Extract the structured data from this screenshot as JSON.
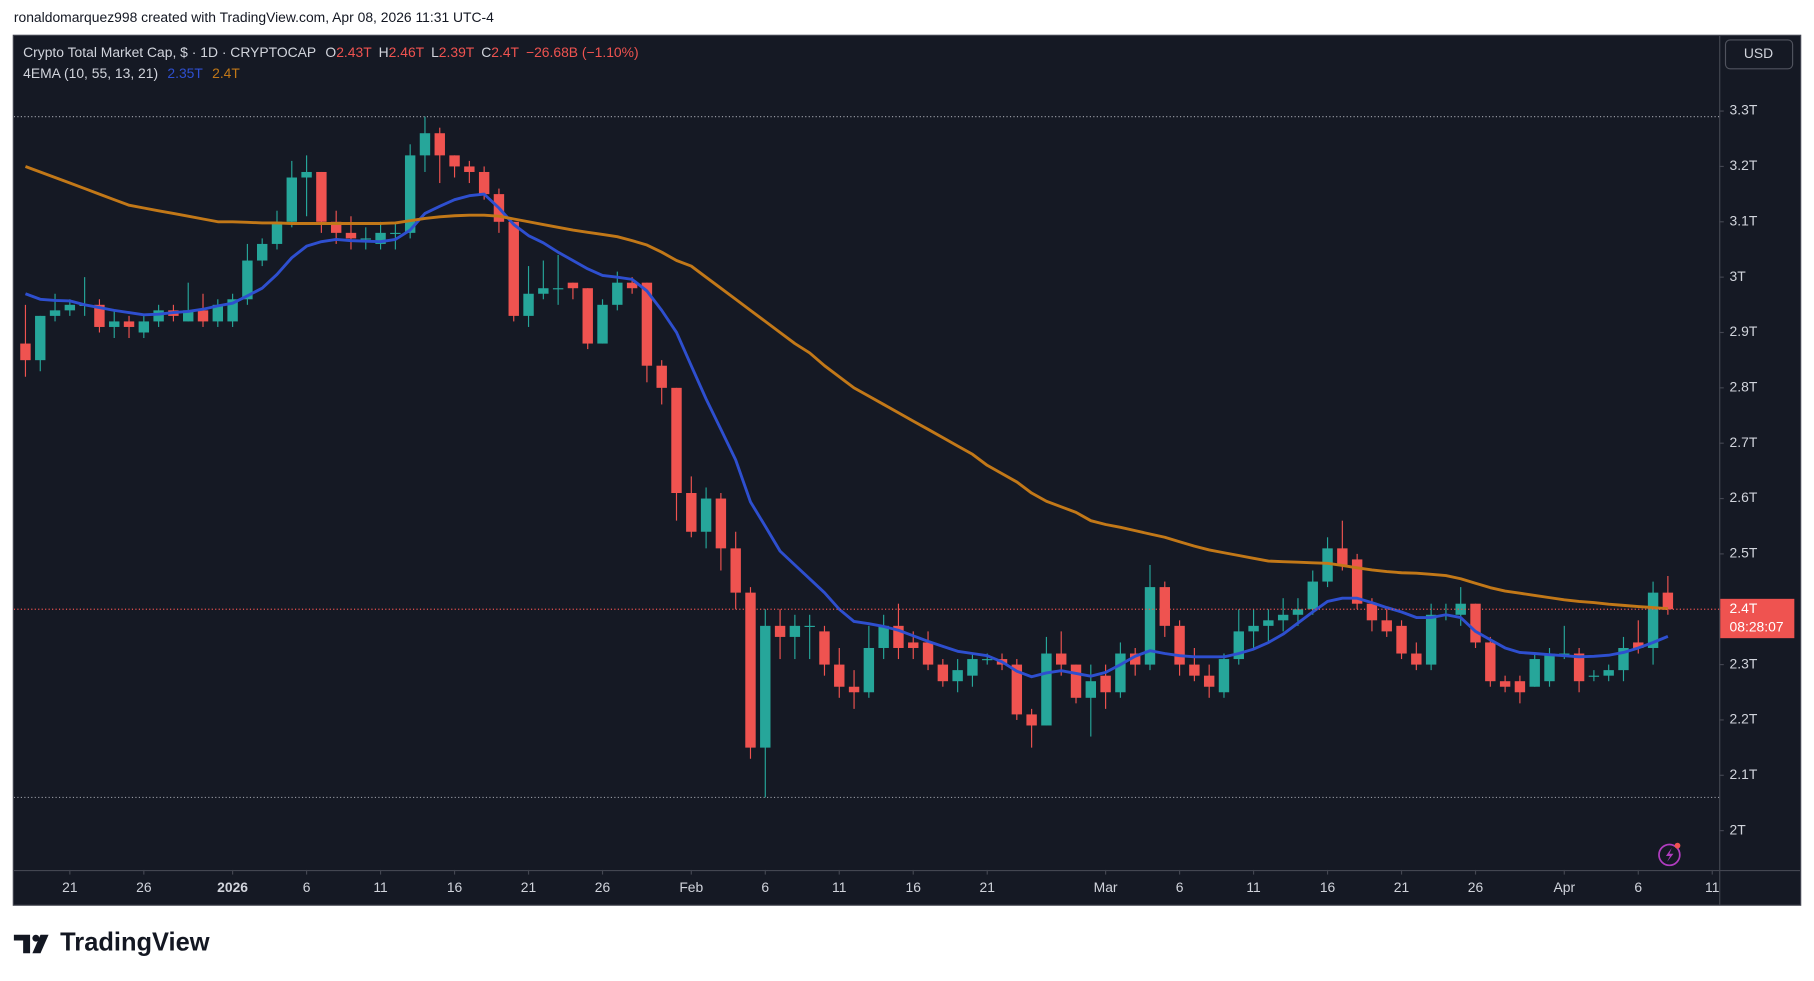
{
  "header": {
    "credit": "ronaldomarquez998 created with TradingView.com, Apr 08, 2026 11:31 UTC-4"
  },
  "footer": {
    "brand": "TradingView"
  },
  "chart_data": {
    "type": "candlestick",
    "title": "Crypto Total Market Cap, $ · 1D · CRYPTOCAP",
    "legend_ohlc": [
      {
        "key": "O",
        "label": "2.43T"
      },
      {
        "key": "H",
        "label": "2.46T"
      },
      {
        "key": "L",
        "label": "2.39T"
      },
      {
        "key": "C",
        "label": "2.4T"
      }
    ],
    "change": "−26.68B (−1.10%)",
    "indicator": {
      "label": "4EMA (10, 55, 13, 21)",
      "value_labels": [
        "2.35T",
        "2.4T"
      ]
    },
    "currency": "USD",
    "up_color": "#26a69a",
    "down_color": "#ef5350",
    "x": [
      "Dec 18",
      "Dec 19",
      "Dec 20",
      "Dec 21",
      "Dec 22",
      "Dec 23",
      "Dec 24",
      "Dec 25",
      "Dec 26",
      "Dec 27",
      "Dec 28",
      "Dec 29",
      "Dec 30",
      "Dec 31",
      "Jan 1",
      "Jan 2",
      "Jan 3",
      "Jan 4",
      "Jan 5",
      "Jan 6",
      "Jan 7",
      "Jan 8",
      "Jan 9",
      "Jan 10",
      "Jan 11",
      "Jan 12",
      "Jan 13",
      "Jan 14",
      "Jan 15",
      "Jan 16",
      "Jan 17",
      "Jan 18",
      "Jan 19",
      "Jan 20",
      "Jan 21",
      "Jan 22",
      "Jan 23",
      "Jan 24",
      "Jan 25",
      "Jan 26",
      "Jan 27",
      "Jan 28",
      "Jan 29",
      "Jan 30",
      "Jan 31",
      "Feb 1",
      "Feb 2",
      "Feb 3",
      "Feb 4",
      "Feb 5",
      "Feb 6",
      "Feb 7",
      "Feb 8",
      "Feb 9",
      "Feb 10",
      "Feb 11",
      "Feb 12",
      "Feb 13",
      "Feb 14",
      "Feb 15",
      "Feb 16",
      "Feb 17",
      "Feb 18",
      "Feb 19",
      "Feb 20",
      "Feb 21",
      "Feb 22",
      "Feb 23",
      "Feb 24",
      "Feb 25",
      "Feb 26",
      "Feb 27",
      "Feb 28",
      "Mar 1",
      "Mar 2",
      "Mar 3",
      "Mar 4",
      "Mar 5",
      "Mar 6",
      "Mar 7",
      "Mar 8",
      "Mar 9",
      "Mar 10",
      "Mar 11",
      "Mar 12",
      "Mar 13",
      "Mar 14",
      "Mar 15",
      "Mar 16",
      "Mar 17",
      "Mar 18",
      "Mar 19",
      "Mar 20",
      "Mar 21",
      "Mar 22",
      "Mar 23",
      "Mar 24",
      "Mar 25",
      "Mar 26",
      "Mar 27",
      "Mar 28",
      "Mar 29",
      "Mar 30",
      "Mar 31",
      "Apr 1",
      "Apr 2",
      "Apr 3",
      "Apr 4",
      "Apr 5",
      "Apr 6",
      "Apr 7",
      "Apr 8"
    ],
    "open": [
      2.88,
      2.85,
      2.93,
      2.94,
      2.95,
      2.95,
      2.91,
      2.92,
      2.9,
      2.92,
      2.94,
      2.92,
      2.94,
      2.92,
      2.92,
      2.96,
      3.03,
      3.06,
      3.1,
      3.18,
      3.19,
      3.1,
      3.08,
      3.07,
      3.06,
      3.08,
      3.08,
      3.22,
      3.26,
      3.22,
      3.2,
      3.19,
      3.15,
      3.1,
      2.93,
      2.97,
      2.98,
      2.99,
      2.98,
      2.88,
      2.95,
      2.99,
      2.99,
      2.84,
      2.8,
      2.61,
      2.54,
      2.6,
      2.51,
      2.43,
      2.15,
      2.37,
      2.35,
      2.37,
      2.36,
      2.3,
      2.26,
      2.25,
      2.33,
      2.37,
      2.34,
      2.34,
      2.3,
      2.27,
      2.28,
      2.31,
      2.31,
      2.3,
      2.21,
      2.19,
      2.32,
      2.3,
      2.24,
      2.28,
      2.25,
      2.32,
      2.3,
      2.44,
      2.37,
      2.3,
      2.28,
      2.25,
      2.31,
      2.36,
      2.37,
      2.38,
      2.39,
      2.4,
      2.45,
      2.51,
      2.49,
      2.41,
      2.38,
      2.37,
      2.32,
      2.3,
      2.39,
      2.39,
      2.41,
      2.34,
      2.27,
      2.27,
      2.26,
      2.27,
      2.32,
      2.32,
      2.28,
      2.28,
      2.29,
      2.34,
      2.33,
      2.43
    ],
    "high": [
      2.95,
      2.93,
      2.97,
      2.96,
      3.0,
      2.96,
      2.94,
      2.93,
      2.93,
      2.95,
      2.95,
      2.99,
      2.97,
      2.96,
      2.97,
      3.06,
      3.07,
      3.12,
      3.21,
      3.22,
      3.19,
      3.12,
      3.11,
      3.09,
      3.1,
      3.1,
      3.24,
      3.29,
      3.27,
      3.22,
      3.21,
      3.2,
      3.16,
      3.1,
      3.02,
      3.03,
      3.04,
      2.99,
      2.98,
      2.96,
      3.01,
      3.0,
      2.99,
      2.85,
      2.8,
      2.64,
      2.62,
      2.61,
      2.54,
      2.44,
      2.4,
      2.4,
      2.39,
      2.39,
      2.37,
      2.33,
      2.29,
      2.37,
      2.39,
      2.41,
      2.36,
      2.36,
      2.31,
      2.31,
      2.32,
      2.32,
      2.32,
      2.31,
      2.22,
      2.35,
      2.36,
      2.3,
      2.3,
      2.3,
      2.34,
      2.33,
      2.48,
      2.45,
      2.38,
      2.33,
      2.3,
      2.32,
      2.4,
      2.4,
      2.4,
      2.42,
      2.42,
      2.47,
      2.53,
      2.56,
      2.5,
      2.42,
      2.4,
      2.38,
      2.34,
      2.41,
      2.41,
      2.44,
      2.41,
      2.35,
      2.28,
      2.28,
      2.32,
      2.33,
      2.37,
      2.33,
      2.29,
      2.3,
      2.35,
      2.38,
      2.45,
      2.46
    ],
    "low": [
      2.82,
      2.83,
      2.92,
      2.93,
      2.93,
      2.9,
      2.89,
      2.89,
      2.89,
      2.91,
      2.92,
      2.92,
      2.91,
      2.91,
      2.91,
      2.95,
      3.02,
      3.05,
      3.09,
      3.11,
      3.08,
      3.06,
      3.05,
      3.05,
      3.05,
      3.05,
      3.07,
      3.19,
      3.17,
      3.18,
      3.17,
      3.14,
      3.08,
      2.92,
      2.91,
      2.96,
      2.95,
      2.96,
      2.87,
      2.88,
      2.94,
      2.97,
      2.81,
      2.77,
      2.56,
      2.53,
      2.51,
      2.47,
      2.4,
      2.13,
      2.06,
      2.31,
      2.31,
      2.31,
      2.28,
      2.24,
      2.22,
      2.24,
      2.31,
      2.31,
      2.31,
      2.29,
      2.26,
      2.25,
      2.26,
      2.3,
      2.29,
      2.2,
      2.15,
      2.19,
      2.28,
      2.23,
      2.17,
      2.22,
      2.24,
      2.28,
      2.29,
      2.35,
      2.28,
      2.27,
      2.24,
      2.24,
      2.3,
      2.33,
      2.34,
      2.36,
      2.37,
      2.39,
      2.44,
      2.47,
      2.4,
      2.36,
      2.35,
      2.31,
      2.29,
      2.29,
      2.38,
      2.37,
      2.33,
      2.26,
      2.25,
      2.23,
      2.26,
      2.26,
      2.31,
      2.25,
      2.27,
      2.27,
      2.27,
      2.32,
      2.3,
      2.39
    ],
    "close": [
      2.85,
      2.93,
      2.94,
      2.95,
      2.95,
      2.91,
      2.92,
      2.91,
      2.92,
      2.94,
      2.93,
      2.94,
      2.92,
      2.95,
      2.96,
      3.03,
      3.06,
      3.1,
      3.18,
      3.19,
      3.1,
      3.08,
      3.07,
      3.07,
      3.08,
      3.08,
      3.22,
      3.26,
      3.22,
      3.2,
      3.19,
      3.15,
      3.1,
      2.93,
      2.97,
      2.98,
      2.98,
      2.98,
      2.88,
      2.95,
      2.99,
      2.98,
      2.84,
      2.8,
      2.61,
      2.54,
      2.6,
      2.51,
      2.43,
      2.15,
      2.37,
      2.35,
      2.37,
      2.37,
      2.3,
      2.26,
      2.25,
      2.33,
      2.37,
      2.33,
      2.33,
      2.3,
      2.27,
      2.29,
      2.31,
      2.31,
      2.3,
      2.21,
      2.19,
      2.32,
      2.3,
      2.24,
      2.27,
      2.25,
      2.32,
      2.3,
      2.44,
      2.37,
      2.3,
      2.28,
      2.26,
      2.31,
      2.36,
      2.37,
      2.38,
      2.39,
      2.4,
      2.45,
      2.51,
      2.48,
      2.41,
      2.38,
      2.36,
      2.32,
      2.3,
      2.39,
      2.39,
      2.41,
      2.34,
      2.27,
      2.26,
      2.25,
      2.31,
      2.32,
      2.32,
      2.27,
      2.28,
      2.29,
      2.33,
      2.33,
      2.43,
      2.4
    ],
    "series": [
      {
        "color": "#2e4fcf",
        "values": [
          2.97,
          2.96,
          2.958,
          2.957,
          2.95,
          2.945,
          2.94,
          2.936,
          2.932,
          2.933,
          2.936,
          2.938,
          2.942,
          2.948,
          2.953,
          2.966,
          2.98,
          3.005,
          3.035,
          3.056,
          3.064,
          3.068,
          3.066,
          3.065,
          3.064,
          3.068,
          3.085,
          3.115,
          3.128,
          3.14,
          3.147,
          3.15,
          3.125,
          3.095,
          3.075,
          3.062,
          3.045,
          3.03,
          3.015,
          3.003,
          3.0,
          2.996,
          2.975,
          2.94,
          2.9,
          2.84,
          2.78,
          2.725,
          2.67,
          2.594,
          2.55,
          2.505,
          2.48,
          2.455,
          2.43,
          2.4,
          2.378,
          2.374,
          2.369,
          2.362,
          2.352,
          2.342,
          2.333,
          2.324,
          2.32,
          2.316,
          2.305,
          2.288,
          2.278,
          2.285,
          2.289,
          2.284,
          2.279,
          2.286,
          2.3,
          2.315,
          2.325,
          2.32,
          2.316,
          2.314,
          2.314,
          2.314,
          2.32,
          2.328,
          2.34,
          2.355,
          2.375,
          2.395,
          2.414,
          2.42,
          2.42,
          2.412,
          2.403,
          2.395,
          2.385,
          2.385,
          2.39,
          2.385,
          2.36,
          2.345,
          2.33,
          2.322,
          2.32,
          2.318,
          2.316,
          2.314,
          2.315,
          2.317,
          2.322,
          2.33,
          2.34,
          2.351
        ]
      },
      {
        "color": "#c27818",
        "values": [
          3.2,
          3.19,
          3.18,
          3.17,
          3.16,
          3.15,
          3.14,
          3.13,
          3.125,
          3.12,
          3.115,
          3.11,
          3.105,
          3.1,
          3.1,
          3.099,
          3.098,
          3.098,
          3.097,
          3.097,
          3.097,
          3.097,
          3.097,
          3.097,
          3.097,
          3.098,
          3.102,
          3.106,
          3.109,
          3.111,
          3.112,
          3.112,
          3.11,
          3.105,
          3.1,
          3.095,
          3.09,
          3.085,
          3.081,
          3.077,
          3.073,
          3.066,
          3.058,
          3.045,
          3.03,
          3.02,
          3.0,
          2.98,
          2.96,
          2.94,
          2.92,
          2.9,
          2.88,
          2.863,
          2.84,
          2.82,
          2.8,
          2.785,
          2.77,
          2.755,
          2.74,
          2.725,
          2.71,
          2.695,
          2.68,
          2.66,
          2.645,
          2.63,
          2.61,
          2.595,
          2.585,
          2.575,
          2.56,
          2.553,
          2.548,
          2.542,
          2.536,
          2.53,
          2.522,
          2.514,
          2.507,
          2.502,
          2.497,
          2.492,
          2.487,
          2.486,
          2.485,
          2.484,
          2.483,
          2.479,
          2.475,
          2.471,
          2.468,
          2.466,
          2.465,
          2.463,
          2.461,
          2.455,
          2.447,
          2.439,
          2.433,
          2.429,
          2.425,
          2.421,
          2.417,
          2.414,
          2.412,
          2.409,
          2.407,
          2.405,
          2.403,
          2.401
        ]
      }
    ],
    "last_price": {
      "value": 2.4,
      "label": "2.4T"
    },
    "countdown": "08:28:07",
    "ylim": [
      1.929,
      3.438
    ],
    "yticks": [
      {
        "value": 2.0,
        "label": "2T"
      },
      {
        "value": 2.1,
        "label": "2.1T"
      },
      {
        "value": 2.2,
        "label": "2.2T"
      },
      {
        "value": 2.3,
        "label": "2.3T"
      },
      {
        "value": 2.4,
        "label": "2.4T"
      },
      {
        "value": 2.5,
        "label": "2.5T"
      },
      {
        "value": 2.6,
        "label": "2.6T"
      },
      {
        "value": 2.7,
        "label": "2.7T"
      },
      {
        "value": 2.8,
        "label": "2.8T"
      },
      {
        "value": 2.9,
        "label": "2.9T"
      },
      {
        "value": 3.0,
        "label": "3T"
      },
      {
        "value": 3.1,
        "label": "3.1T"
      },
      {
        "value": 3.2,
        "label": "3.2T"
      },
      {
        "value": 3.3,
        "label": "3.3T"
      }
    ],
    "xticks": [
      {
        "value": "Dec 21",
        "label": "21"
      },
      {
        "value": "Dec 26",
        "label": "26"
      },
      {
        "value": "Jan 1",
        "label": "2026"
      },
      {
        "value": "Jan 6",
        "label": "6"
      },
      {
        "value": "Jan 11",
        "label": "11"
      },
      {
        "value": "Jan 16",
        "label": "16"
      },
      {
        "value": "Jan 21",
        "label": "21"
      },
      {
        "value": "Jan 26",
        "label": "26"
      },
      {
        "value": "Feb 1",
        "label": "Feb"
      },
      {
        "value": "Feb 6",
        "label": "6"
      },
      {
        "value": "Feb 11",
        "label": "11"
      },
      {
        "value": "Feb 16",
        "label": "16"
      },
      {
        "value": "Feb 21",
        "label": "21"
      },
      {
        "value": "Mar 1",
        "label": "Mar"
      },
      {
        "value": "Mar 6",
        "label": "6"
      },
      {
        "value": "Mar 11",
        "label": "11"
      },
      {
        "value": "Mar 16",
        "label": "16"
      },
      {
        "value": "Mar 21",
        "label": "21"
      },
      {
        "value": "Mar 26",
        "label": "26"
      },
      {
        "value": "Apr 1",
        "label": "Apr"
      },
      {
        "value": "Apr 6",
        "label": "6"
      },
      {
        "value": "Apr 11",
        "label": "11"
      }
    ],
    "grid": false
  }
}
